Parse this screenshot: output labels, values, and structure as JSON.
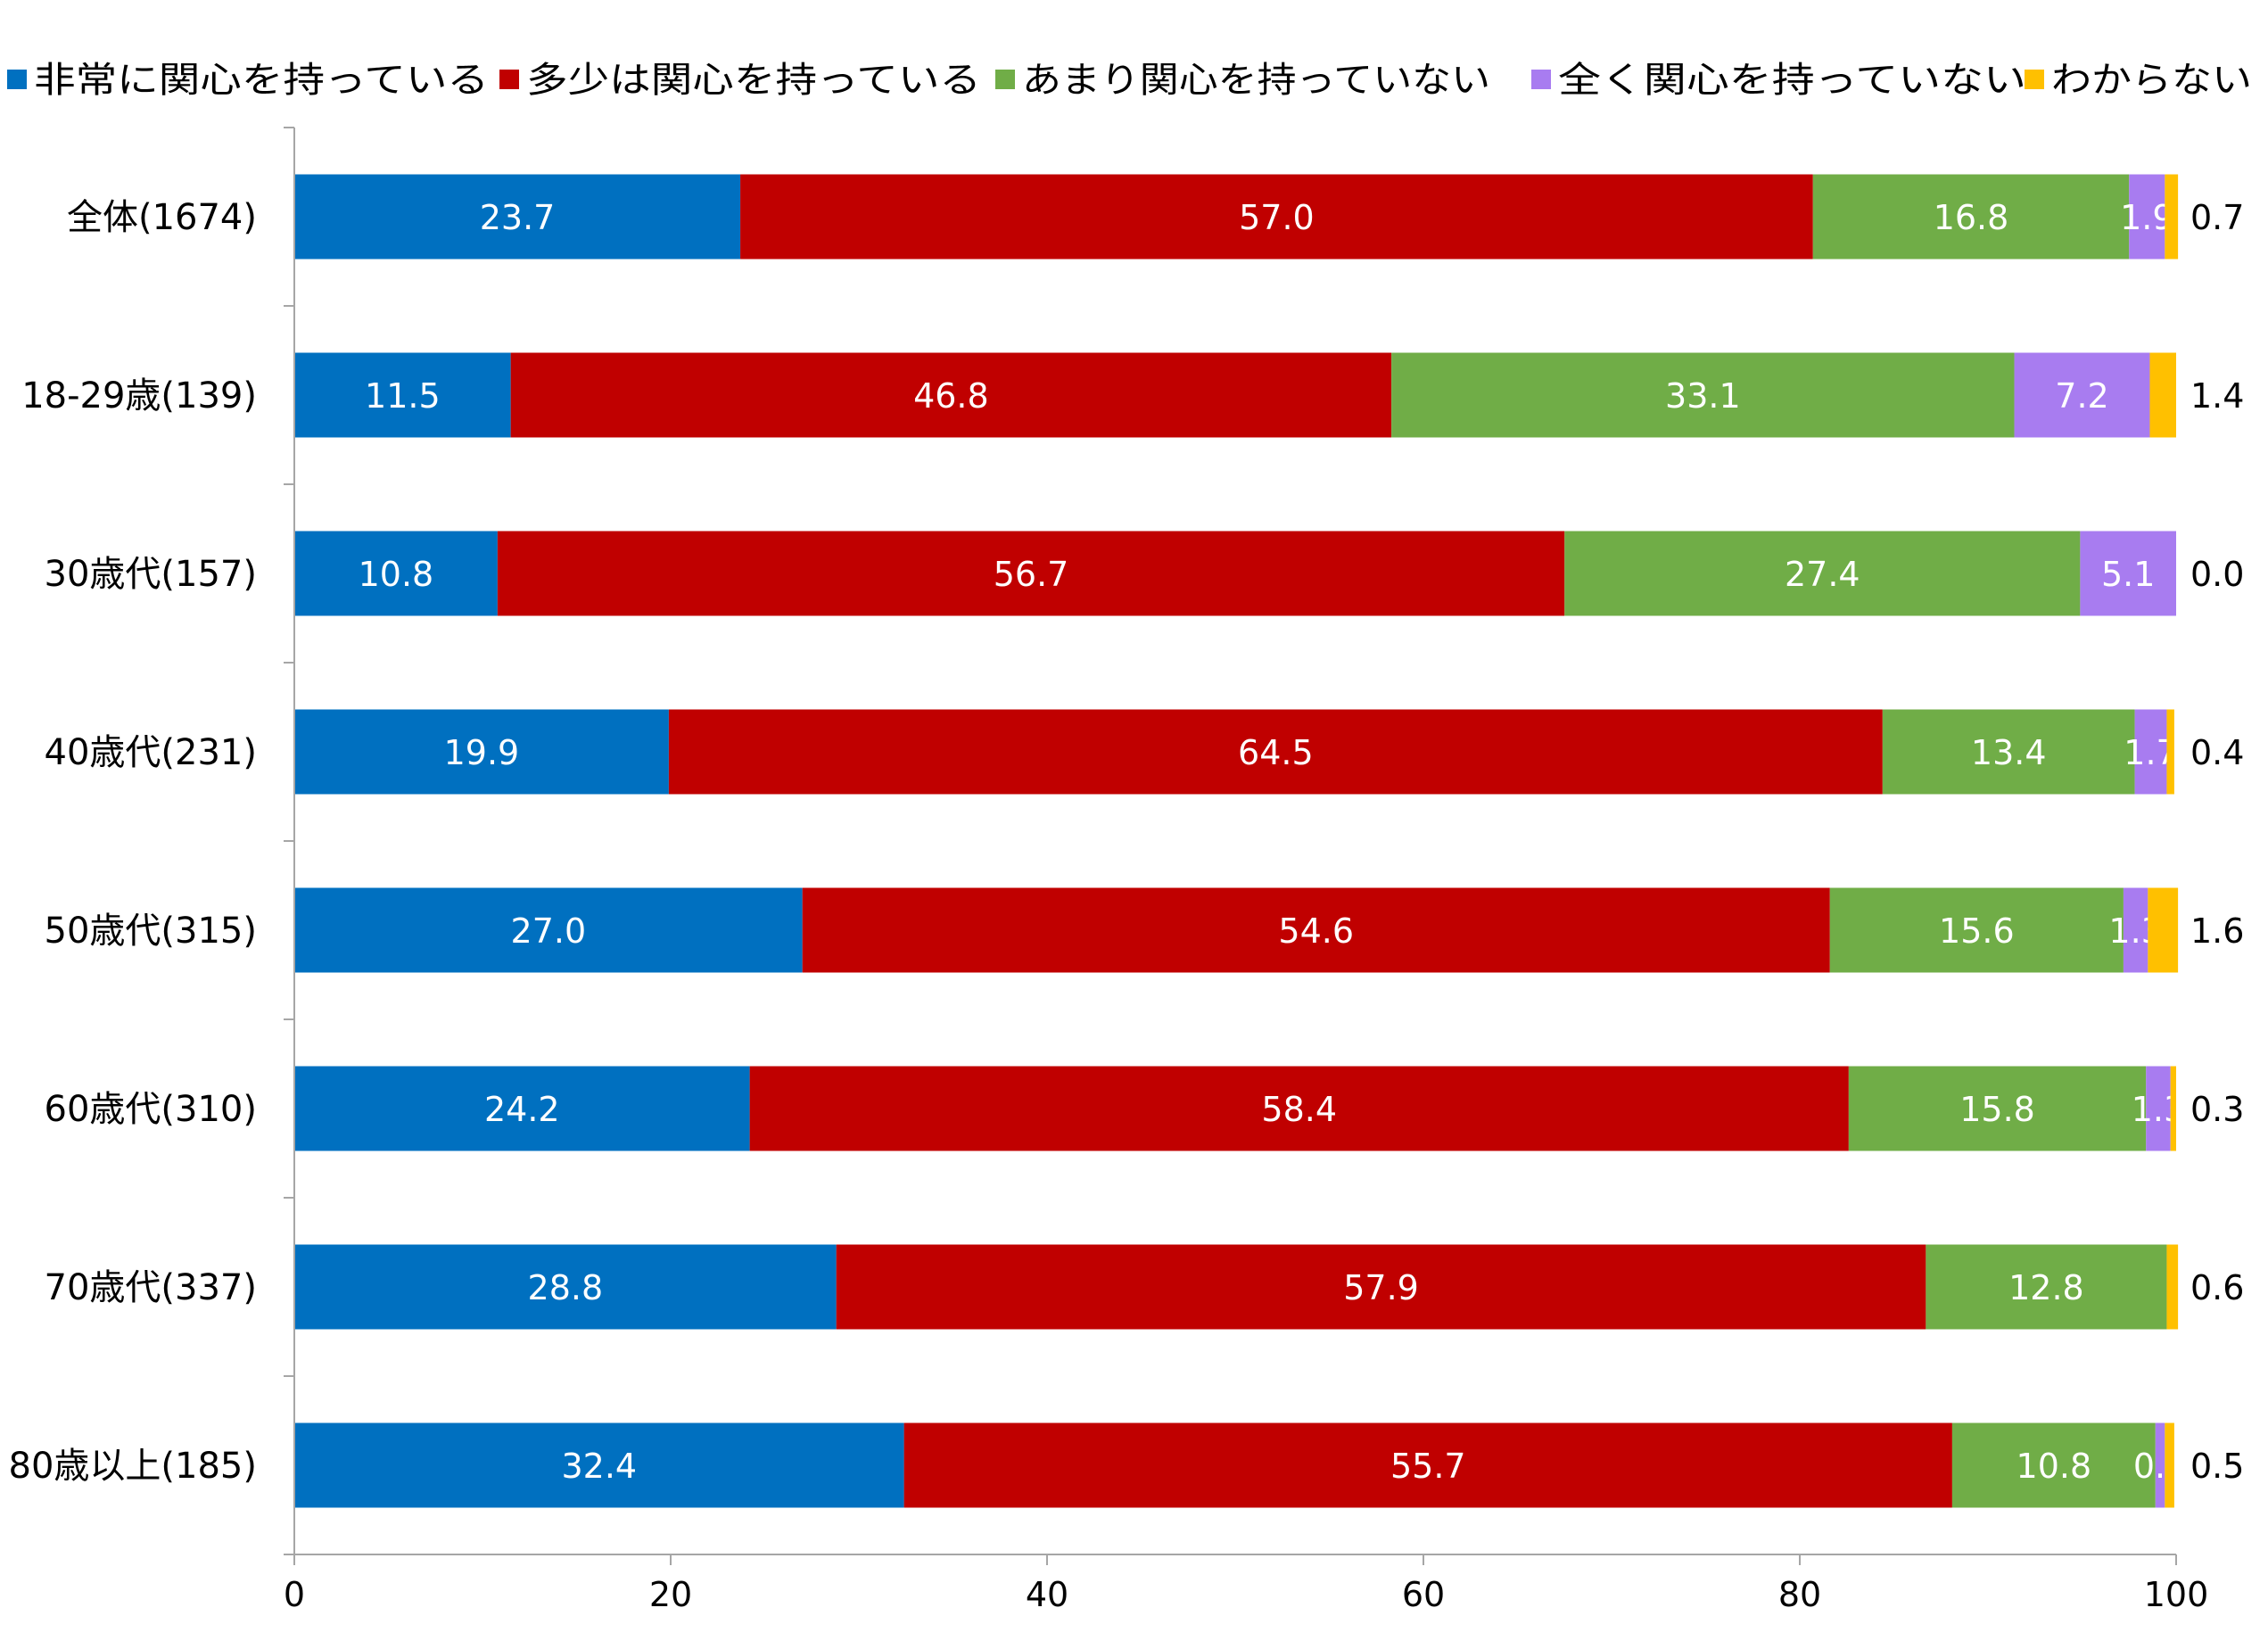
{
  "chart_data": {
    "type": "bar",
    "orientation": "horizontal",
    "stacked": true,
    "title": "",
    "xlabel": "",
    "ylabel": "",
    "xlim": [
      0,
      100
    ],
    "xticks": [
      "0",
      "20",
      "40",
      "60",
      "80",
      "100"
    ],
    "grid": false,
    "legend_position": "top",
    "categories": [
      "全体(1674)",
      "18-29歳(139)",
      "30歳代(157)",
      "40歳代(231)",
      "50歳代(315)",
      "60歳代(310)",
      "70歳代(337)",
      "80歳以上(185)"
    ],
    "series": [
      {
        "name": "非常に関心を持っている",
        "color": "#0070C0",
        "values": [
          23.7,
          11.5,
          10.8,
          19.9,
          27.0,
          24.2,
          28.8,
          32.4
        ],
        "labels": [
          "23.7",
          "11.5",
          "10.8",
          "19.9",
          "27.0",
          "24.2",
          "28.8",
          "32.4"
        ]
      },
      {
        "name": "多少は関心を持っている",
        "color": "#C00000",
        "values": [
          57.0,
          46.8,
          56.7,
          64.5,
          54.6,
          58.4,
          57.9,
          55.7
        ],
        "labels": [
          "57.0",
          "46.8",
          "56.7",
          "64.5",
          "54.6",
          "58.4",
          "57.9",
          "55.7"
        ]
      },
      {
        "name": "あまり関心を持っていない",
        "color": "#70AD47",
        "values": [
          16.8,
          33.1,
          27.4,
          13.4,
          15.6,
          15.8,
          12.8,
          10.8
        ],
        "labels": [
          "16.8",
          "33.1",
          "27.4",
          "13.4",
          "15.6",
          "15.8",
          "12.8",
          "10.8"
        ]
      },
      {
        "name": "全く関心を持っていない",
        "color": "#A87CF0",
        "values": [
          1.9,
          7.2,
          5.1,
          1.7,
          1.3,
          1.3,
          0.0,
          0.5
        ],
        "labels": [
          "1.9",
          "7.2",
          "5.1",
          "1.7",
          "1.3",
          "1.3",
          "",
          "0.5"
        ]
      },
      {
        "name": "わからない",
        "color": "#FFC000",
        "values": [
          0.7,
          1.4,
          0.0,
          0.4,
          1.6,
          0.3,
          0.6,
          0.5
        ],
        "labels": [
          "0.7",
          "1.4",
          "0.0",
          "0.4",
          "1.6",
          "0.3",
          "0.6",
          "0.5"
        ],
        "label_outside": true
      }
    ]
  }
}
